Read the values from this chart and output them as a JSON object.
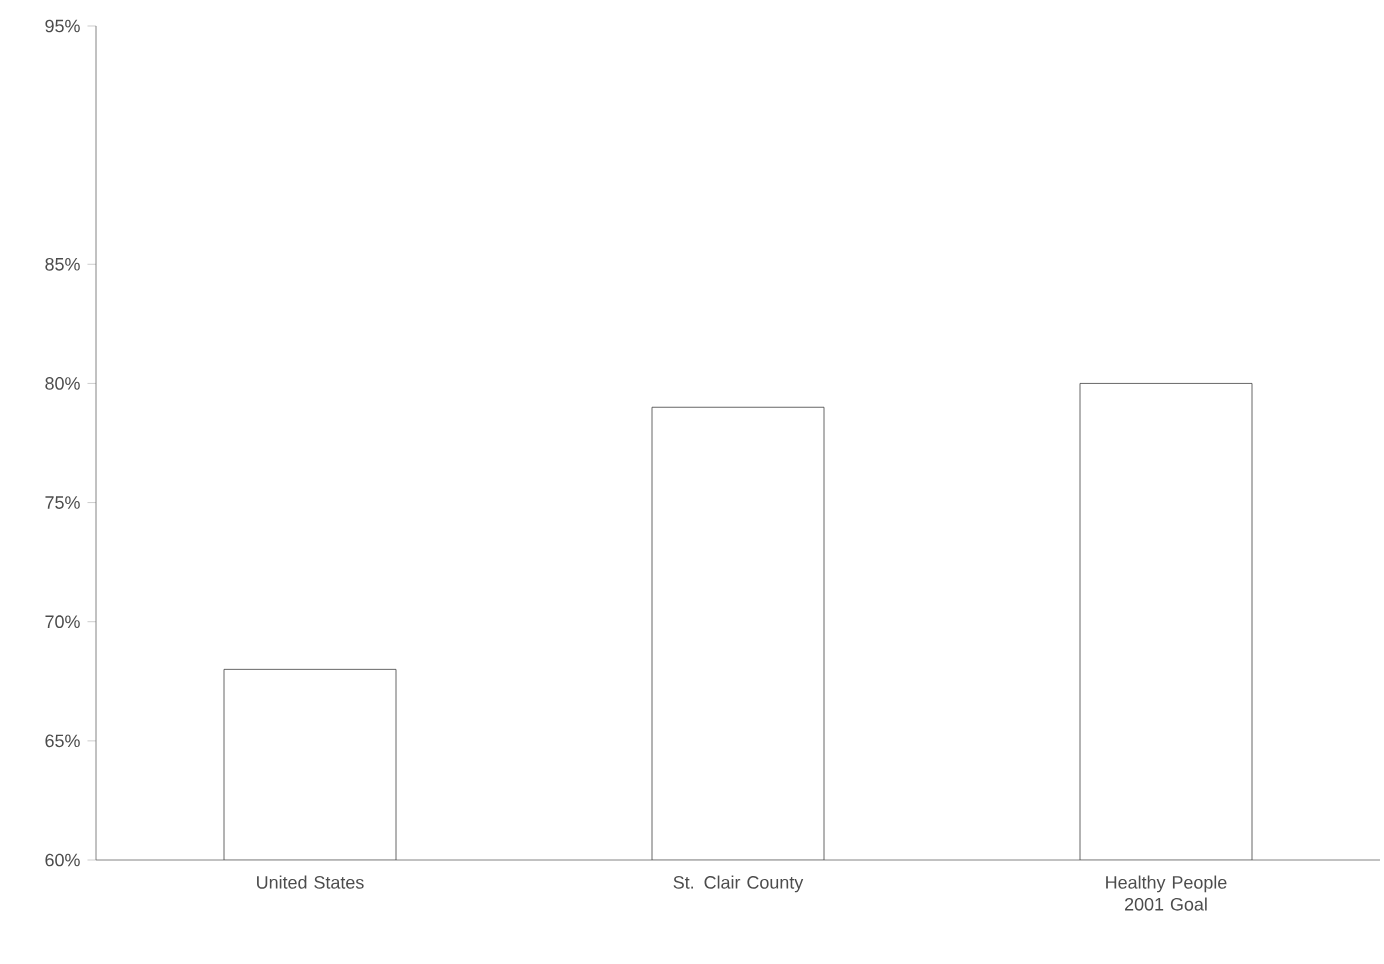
{
  "chart_data": {
    "type": "bar",
    "categories": [
      "United States",
      "St. Clair County",
      "Healthy People 2001 Goal"
    ],
    "values": [
      68,
      79,
      80
    ],
    "color": "#ffffff",
    "ylim": [
      60,
      95
    ],
    "yticks": [
      {
        "value": 60,
        "label": "60%"
      },
      {
        "value": 65,
        "label": "65%"
      },
      {
        "value": 70,
        "label": "70%"
      },
      {
        "value": 75,
        "label": "75%"
      },
      {
        "value": 80,
        "label": "80%"
      },
      {
        "value": 85,
        "label": "85%"
      },
      {
        "value": 95,
        "label": "95%"
      }
    ],
    "grid": false
  }
}
